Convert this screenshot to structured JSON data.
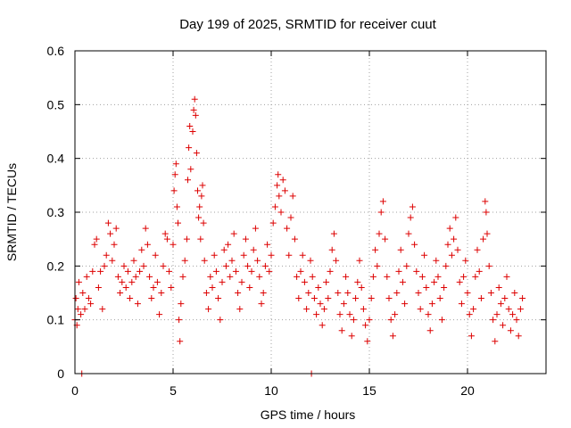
{
  "chart_data": {
    "type": "scatter",
    "title": "Day 199 of 2025, SRMTID for receiver cuut",
    "xlabel": "GPS time / hours",
    "ylabel": "SRMTID / TECUs",
    "xlim": [
      0,
      24
    ],
    "ylim": [
      0,
      0.6
    ],
    "x_ticks": [
      0,
      5,
      10,
      15,
      20
    ],
    "y_ticks": [
      0,
      0.1,
      0.2,
      0.3,
      0.4,
      0.5,
      0.6
    ],
    "x_tick_labels": [
      "0",
      "5",
      "10",
      "15",
      "20"
    ],
    "y_tick_labels": [
      "0",
      "0.1",
      "0.2",
      "0.3",
      "0.4",
      "0.5",
      "0.6"
    ],
    "grid": true,
    "marker": "+",
    "color": "#dd0000",
    "series": [
      {
        "name": "SRMTID",
        "points": [
          [
            0.0,
            0.1
          ],
          [
            0.05,
            0.14
          ],
          [
            0.1,
            0.09
          ],
          [
            0.15,
            0.12
          ],
          [
            0.2,
            0.17
          ],
          [
            0.3,
            0.11
          ],
          [
            0.4,
            0.15
          ],
          [
            0.5,
            0.12
          ],
          [
            0.6,
            0.18
          ],
          [
            0.7,
            0.14
          ],
          [
            0.8,
            0.13
          ],
          [
            0.9,
            0.19
          ],
          [
            1.0,
            0.24
          ],
          [
            1.1,
            0.25
          ],
          [
            1.2,
            0.16
          ],
          [
            1.3,
            0.19
          ],
          [
            1.4,
            0.12
          ],
          [
            1.5,
            0.2
          ],
          [
            1.6,
            0.22
          ],
          [
            1.7,
            0.28
          ],
          [
            1.8,
            0.26
          ],
          [
            1.9,
            0.21
          ],
          [
            2.0,
            0.24
          ],
          [
            2.1,
            0.27
          ],
          [
            2.2,
            0.18
          ],
          [
            2.3,
            0.15
          ],
          [
            2.4,
            0.17
          ],
          [
            2.5,
            0.2
          ],
          [
            2.6,
            0.16
          ],
          [
            2.7,
            0.19
          ],
          [
            2.8,
            0.14
          ],
          [
            2.9,
            0.17
          ],
          [
            3.0,
            0.21
          ],
          [
            3.1,
            0.18
          ],
          [
            3.2,
            0.13
          ],
          [
            3.3,
            0.19
          ],
          [
            3.4,
            0.23
          ],
          [
            3.5,
            0.2
          ],
          [
            3.6,
            0.27
          ],
          [
            3.7,
            0.24
          ],
          [
            3.8,
            0.18
          ],
          [
            3.9,
            0.14
          ],
          [
            4.0,
            0.16
          ],
          [
            4.1,
            0.22
          ],
          [
            4.2,
            0.17
          ],
          [
            4.3,
            0.11
          ],
          [
            4.4,
            0.15
          ],
          [
            4.5,
            0.2
          ],
          [
            4.6,
            0.26
          ],
          [
            4.7,
            0.25
          ],
          [
            4.8,
            0.19
          ],
          [
            4.9,
            0.16
          ],
          [
            5.0,
            0.24
          ],
          [
            5.05,
            0.34
          ],
          [
            5.1,
            0.37
          ],
          [
            5.15,
            0.39
          ],
          [
            5.2,
            0.31
          ],
          [
            5.25,
            0.28
          ],
          [
            5.3,
            0.1
          ],
          [
            5.35,
            0.06
          ],
          [
            5.4,
            0.13
          ],
          [
            5.5,
            0.18
          ],
          [
            5.6,
            0.21
          ],
          [
            5.7,
            0.25
          ],
          [
            5.75,
            0.36
          ],
          [
            5.8,
            0.42
          ],
          [
            5.85,
            0.46
          ],
          [
            5.9,
            0.38
          ],
          [
            6.0,
            0.45
          ],
          [
            6.05,
            0.49
          ],
          [
            6.1,
            0.51
          ],
          [
            6.15,
            0.48
          ],
          [
            6.2,
            0.41
          ],
          [
            6.25,
            0.34
          ],
          [
            6.3,
            0.29
          ],
          [
            6.35,
            0.31
          ],
          [
            6.4,
            0.25
          ],
          [
            6.45,
            0.33
          ],
          [
            6.5,
            0.35
          ],
          [
            6.55,
            0.28
          ],
          [
            6.6,
            0.21
          ],
          [
            6.7,
            0.15
          ],
          [
            6.8,
            0.12
          ],
          [
            6.9,
            0.18
          ],
          [
            7.0,
            0.16
          ],
          [
            7.1,
            0.22
          ],
          [
            7.2,
            0.19
          ],
          [
            7.3,
            0.14
          ],
          [
            7.4,
            0.1
          ],
          [
            7.5,
            0.17
          ],
          [
            7.6,
            0.23
          ],
          [
            7.7,
            0.2
          ],
          [
            7.8,
            0.24
          ],
          [
            7.9,
            0.18
          ],
          [
            8.0,
            0.21
          ],
          [
            8.1,
            0.26
          ],
          [
            8.2,
            0.19
          ],
          [
            8.3,
            0.15
          ],
          [
            8.4,
            0.12
          ],
          [
            8.5,
            0.17
          ],
          [
            8.6,
            0.22
          ],
          [
            8.7,
            0.25
          ],
          [
            8.8,
            0.2
          ],
          [
            8.9,
            0.16
          ],
          [
            9.0,
            0.19
          ],
          [
            9.1,
            0.23
          ],
          [
            9.2,
            0.27
          ],
          [
            9.3,
            0.21
          ],
          [
            9.4,
            0.18
          ],
          [
            9.5,
            0.13
          ],
          [
            9.6,
            0.15
          ],
          [
            9.7,
            0.2
          ],
          [
            9.8,
            0.24
          ],
          [
            9.9,
            0.19
          ],
          [
            10.0,
            0.22
          ],
          [
            10.1,
            0.28
          ],
          [
            10.2,
            0.31
          ],
          [
            10.3,
            0.35
          ],
          [
            10.35,
            0.37
          ],
          [
            10.4,
            0.33
          ],
          [
            10.5,
            0.3
          ],
          [
            10.6,
            0.36
          ],
          [
            10.7,
            0.34
          ],
          [
            10.8,
            0.27
          ],
          [
            10.9,
            0.22
          ],
          [
            11.0,
            0.29
          ],
          [
            11.1,
            0.33
          ],
          [
            11.2,
            0.25
          ],
          [
            11.3,
            0.18
          ],
          [
            11.4,
            0.14
          ],
          [
            11.5,
            0.19
          ],
          [
            11.6,
            0.22
          ],
          [
            11.7,
            0.17
          ],
          [
            11.8,
            0.12
          ],
          [
            11.9,
            0.15
          ],
          [
            12.0,
            0.21
          ],
          [
            12.1,
            0.18
          ],
          [
            12.2,
            0.14
          ],
          [
            12.3,
            0.11
          ],
          [
            12.4,
            0.16
          ],
          [
            12.5,
            0.13
          ],
          [
            12.6,
            0.09
          ],
          [
            12.7,
            0.12
          ],
          [
            12.8,
            0.17
          ],
          [
            12.9,
            0.14
          ],
          [
            13.0,
            0.19
          ],
          [
            13.1,
            0.23
          ],
          [
            13.2,
            0.26
          ],
          [
            13.3,
            0.21
          ],
          [
            13.4,
            0.15
          ],
          [
            13.5,
            0.11
          ],
          [
            13.6,
            0.08
          ],
          [
            13.7,
            0.13
          ],
          [
            13.8,
            0.18
          ],
          [
            13.9,
            0.15
          ],
          [
            14.0,
            0.11
          ],
          [
            14.1,
            0.07
          ],
          [
            14.2,
            0.1
          ],
          [
            14.3,
            0.14
          ],
          [
            14.4,
            0.17
          ],
          [
            14.5,
            0.21
          ],
          [
            14.6,
            0.16
          ],
          [
            14.7,
            0.12
          ],
          [
            14.8,
            0.09
          ],
          [
            14.9,
            0.06
          ],
          [
            15.0,
            0.1
          ],
          [
            15.1,
            0.14
          ],
          [
            15.2,
            0.18
          ],
          [
            15.3,
            0.23
          ],
          [
            15.4,
            0.2
          ],
          [
            15.5,
            0.26
          ],
          [
            15.6,
            0.3
          ],
          [
            15.7,
            0.32
          ],
          [
            15.8,
            0.25
          ],
          [
            15.9,
            0.18
          ],
          [
            16.0,
            0.14
          ],
          [
            16.1,
            0.1
          ],
          [
            16.2,
            0.07
          ],
          [
            16.3,
            0.11
          ],
          [
            16.4,
            0.15
          ],
          [
            16.5,
            0.19
          ],
          [
            16.6,
            0.23
          ],
          [
            16.7,
            0.17
          ],
          [
            16.8,
            0.13
          ],
          [
            16.9,
            0.2
          ],
          [
            17.0,
            0.26
          ],
          [
            17.1,
            0.29
          ],
          [
            17.2,
            0.31
          ],
          [
            17.3,
            0.24
          ],
          [
            17.4,
            0.19
          ],
          [
            17.5,
            0.15
          ],
          [
            17.6,
            0.12
          ],
          [
            17.7,
            0.18
          ],
          [
            17.8,
            0.22
          ],
          [
            17.9,
            0.16
          ],
          [
            18.0,
            0.11
          ],
          [
            18.1,
            0.08
          ],
          [
            18.2,
            0.13
          ],
          [
            18.3,
            0.17
          ],
          [
            18.4,
            0.21
          ],
          [
            18.5,
            0.18
          ],
          [
            18.6,
            0.14
          ],
          [
            18.7,
            0.1
          ],
          [
            18.8,
            0.16
          ],
          [
            18.9,
            0.2
          ],
          [
            19.0,
            0.24
          ],
          [
            19.1,
            0.27
          ],
          [
            19.2,
            0.22
          ],
          [
            19.3,
            0.25
          ],
          [
            19.4,
            0.29
          ],
          [
            19.5,
            0.23
          ],
          [
            19.6,
            0.17
          ],
          [
            19.7,
            0.13
          ],
          [
            19.8,
            0.18
          ],
          [
            19.9,
            0.21
          ],
          [
            20.0,
            0.15
          ],
          [
            20.1,
            0.11
          ],
          [
            20.2,
            0.07
          ],
          [
            20.3,
            0.12
          ],
          [
            20.4,
            0.18
          ],
          [
            20.5,
            0.23
          ],
          [
            20.6,
            0.19
          ],
          [
            20.7,
            0.14
          ],
          [
            20.8,
            0.25
          ],
          [
            20.9,
            0.32
          ],
          [
            20.95,
            0.3
          ],
          [
            21.0,
            0.26
          ],
          [
            21.1,
            0.2
          ],
          [
            21.2,
            0.15
          ],
          [
            21.3,
            0.1
          ],
          [
            21.4,
            0.06
          ],
          [
            21.5,
            0.11
          ],
          [
            21.6,
            0.16
          ],
          [
            21.7,
            0.13
          ],
          [
            21.8,
            0.09
          ],
          [
            21.9,
            0.14
          ],
          [
            22.0,
            0.18
          ],
          [
            22.1,
            0.12
          ],
          [
            22.2,
            0.08
          ],
          [
            22.3,
            0.11
          ],
          [
            22.4,
            0.15
          ],
          [
            22.5,
            0.1
          ],
          [
            22.6,
            0.07
          ],
          [
            22.7,
            0.12
          ],
          [
            22.8,
            0.14
          ],
          [
            0.35,
            0.0
          ],
          [
            12.05,
            0.0
          ]
        ]
      }
    ]
  }
}
